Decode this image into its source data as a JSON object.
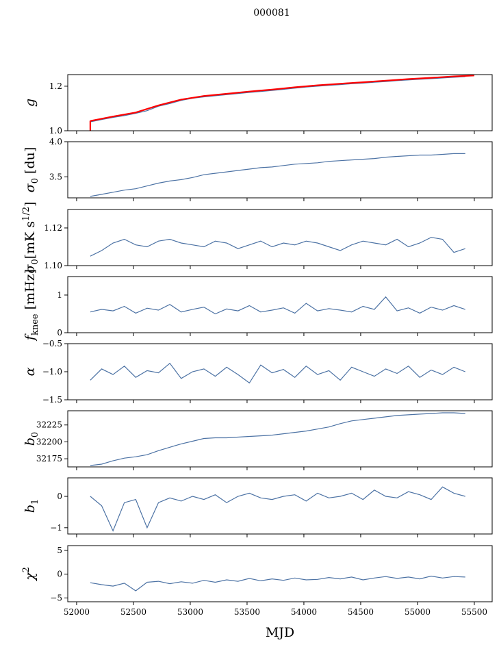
{
  "chart_data": {
    "type": "line",
    "title": "000081",
    "xlabel": "MJD",
    "xlim": [
      51922,
      55657
    ],
    "xticks": [
      52000,
      52500,
      53000,
      53500,
      54000,
      54500,
      55000,
      55500
    ],
    "xtick_labels": [
      "52000",
      "52500",
      "53000",
      "53500",
      "54000",
      "54500",
      "55000",
      "55500"
    ],
    "x": [
      52120,
      52220,
      52320,
      52420,
      52520,
      52620,
      52720,
      52820,
      52920,
      53020,
      53120,
      53220,
      53320,
      53420,
      53520,
      53620,
      53720,
      53820,
      53920,
      54020,
      54120,
      54220,
      54320,
      54420,
      54520,
      54620,
      54720,
      54820,
      54920,
      55020,
      55120,
      55220,
      55320,
      55420
    ],
    "line_color": "#4c72a4",
    "model_color": "#ff0000",
    "panels": [
      {
        "name": "g",
        "ylabel": "g",
        "ylim": [
          1.0,
          1.252
        ],
        "yticks": [
          1.0,
          1.2
        ],
        "ytick_labels": [
          "1.0",
          "1.2"
        ],
        "values": [
          1.04,
          1.05,
          1.06,
          1.068,
          1.078,
          1.09,
          1.11,
          1.122,
          1.136,
          1.146,
          1.152,
          1.157,
          1.162,
          1.167,
          1.172,
          1.176,
          1.181,
          1.186,
          1.191,
          1.196,
          1.2,
          1.204,
          1.207,
          1.211,
          1.214,
          1.218,
          1.221,
          1.225,
          1.228,
          1.231,
          1.234,
          1.237,
          1.24,
          1.243
        ],
        "model": {
          "x": [
            52120,
            52120,
            52120,
            52320,
            52520,
            52720,
            52920,
            53120,
            53320,
            53520,
            53720,
            53920,
            54120,
            54320,
            54520,
            54720,
            54920,
            55120,
            55320,
            55500
          ],
          "values": [
            1.0,
            1.045,
            1.044,
            1.064,
            1.082,
            1.114,
            1.14,
            1.156,
            1.166,
            1.176,
            1.185,
            1.195,
            1.204,
            1.211,
            1.218,
            1.225,
            1.232,
            1.238,
            1.244,
            1.248
          ]
        }
      },
      {
        "name": "sigma0-du",
        "ylabel_main": "σ",
        "ylabel_sub": "0",
        "ylabel_rest": " [du]",
        "ylim": [
          3.2,
          4.0
        ],
        "yticks": [
          3.5,
          4.0
        ],
        "ytick_labels": [
          "3.5",
          "4.0"
        ],
        "values": [
          3.22,
          3.25,
          3.28,
          3.31,
          3.33,
          3.37,
          3.41,
          3.44,
          3.46,
          3.49,
          3.53,
          3.55,
          3.57,
          3.59,
          3.61,
          3.63,
          3.64,
          3.66,
          3.68,
          3.69,
          3.7,
          3.72,
          3.73,
          3.74,
          3.75,
          3.76,
          3.78,
          3.79,
          3.8,
          3.81,
          3.81,
          3.82,
          3.83,
          3.83
        ]
      },
      {
        "name": "sigma0-mk",
        "ylabel_main": "σ",
        "ylabel_sub": "0",
        "ylabel_rest": "[mK s",
        "ylabel_sup": "1/2",
        "ylabel_end": "]",
        "ylim": [
          1.1,
          1.1298
        ],
        "yticks": [
          1.1,
          1.12
        ],
        "ytick_labels": [
          "1.10",
          "1.12"
        ],
        "values": [
          1.105,
          1.108,
          1.112,
          1.114,
          1.111,
          1.11,
          1.113,
          1.114,
          1.112,
          1.111,
          1.11,
          1.113,
          1.112,
          1.109,
          1.111,
          1.113,
          1.11,
          1.112,
          1.111,
          1.113,
          1.112,
          1.11,
          1.108,
          1.111,
          1.113,
          1.112,
          1.111,
          1.114,
          1.11,
          1.112,
          1.115,
          1.114,
          1.107,
          1.109
        ]
      },
      {
        "name": "fknee",
        "ylabel_main": "f",
        "ylabel_sub": "knee",
        "ylabel_rest": " [mHz]",
        "ylim": [
          0,
          1.49
        ],
        "yticks": [
          0,
          1
        ],
        "ytick_labels": [
          "0",
          "1"
        ],
        "values": [
          0.55,
          0.62,
          0.58,
          0.7,
          0.52,
          0.65,
          0.6,
          0.75,
          0.55,
          0.62,
          0.68,
          0.5,
          0.63,
          0.58,
          0.72,
          0.55,
          0.6,
          0.66,
          0.52,
          0.78,
          0.58,
          0.64,
          0.6,
          0.55,
          0.7,
          0.62,
          0.95,
          0.58,
          0.66,
          0.52,
          0.68,
          0.6,
          0.72,
          0.62
        ]
      },
      {
        "name": "alpha",
        "ylabel_main": "α",
        "ylim": [
          -1.5,
          -0.5
        ],
        "yticks": [
          -1.5,
          -1.0,
          -0.5
        ],
        "ytick_labels": [
          "−1.5",
          "−1.0",
          "−0.5"
        ],
        "values": [
          -1.15,
          -0.95,
          -1.05,
          -0.9,
          -1.1,
          -0.98,
          -1.02,
          -0.85,
          -1.12,
          -1.0,
          -0.95,
          -1.08,
          -0.92,
          -1.05,
          -1.2,
          -0.88,
          -1.02,
          -0.96,
          -1.1,
          -0.9,
          -1.05,
          -0.98,
          -1.15,
          -0.92,
          -1.0,
          -1.08,
          -0.95,
          -1.03,
          -0.9,
          -1.1,
          -0.97,
          -1.05,
          -0.92,
          -1.0
        ]
      },
      {
        "name": "b0",
        "ylabel_main": "b",
        "ylabel_sub": "0",
        "ylim": [
          32163,
          32246
        ],
        "yticks": [
          32175,
          32200,
          32225
        ],
        "ytick_labels": [
          "32175",
          "32200",
          "32225"
        ],
        "values": [
          32165,
          32167,
          32172,
          32176,
          32178,
          32181,
          32187,
          32192,
          32197,
          32201,
          32205,
          32206,
          32206,
          32207,
          32208,
          32209,
          32210,
          32212,
          32214,
          32216,
          32219,
          32222,
          32227,
          32231,
          32233,
          32235,
          32237,
          32239,
          32240,
          32241,
          32242,
          32243,
          32243,
          32242
        ]
      },
      {
        "name": "b1",
        "ylabel_main": "b",
        "ylabel_sub": "1",
        "ylim": [
          -1.2,
          0.59
        ],
        "yticks": [
          -1,
          0
        ],
        "ytick_labels": [
          "−1",
          "0"
        ],
        "values": [
          0.0,
          -0.3,
          -1.1,
          -0.2,
          -0.1,
          -1.0,
          -0.2,
          -0.05,
          -0.15,
          0.0,
          -0.1,
          0.05,
          -0.2,
          0.0,
          0.1,
          -0.05,
          -0.1,
          0.0,
          0.05,
          -0.15,
          0.1,
          -0.05,
          0.0,
          0.1,
          -0.1,
          0.2,
          0.0,
          -0.05,
          0.15,
          0.05,
          -0.1,
          0.3,
          0.1,
          0.0
        ]
      },
      {
        "name": "chi2",
        "ylabel_main": "χ",
        "ylabel_sup": "2",
        "ylim": [
          -5.8,
          6.0
        ],
        "yticks": [
          -5,
          0,
          5
        ],
        "ytick_labels": [
          "−5",
          "0",
          "5"
        ],
        "values": [
          -1.8,
          -2.2,
          -2.5,
          -1.9,
          -3.5,
          -1.7,
          -1.5,
          -2.0,
          -1.6,
          -1.9,
          -1.3,
          -1.7,
          -1.2,
          -1.5,
          -0.9,
          -1.4,
          -1.0,
          -1.3,
          -0.8,
          -1.2,
          -1.1,
          -0.7,
          -1.0,
          -0.6,
          -1.2,
          -0.8,
          -0.5,
          -0.9,
          -0.6,
          -1.0,
          -0.4,
          -0.8,
          -0.5,
          -0.6
        ]
      }
    ]
  }
}
